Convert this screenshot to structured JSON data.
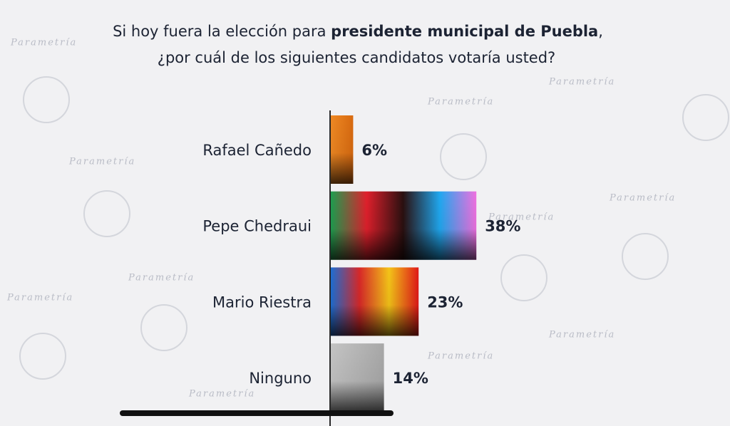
{
  "chart_data": {
    "type": "bar",
    "title": [
      "Si hoy fuera la elección para",
      "presidente municipal de Puebla",
      ",",
      "¿por cuál de los siguientes candidatos votaría usted?"
    ],
    "categories": [
      "Rafael Cañedo",
      "Pepe Chedraui",
      "Mario Riestra",
      "Ninguno"
    ],
    "values": [
      6,
      38,
      23,
      14
    ],
    "value_labels": [
      "6%",
      "38%",
      "23%",
      "14%"
    ],
    "colors": [
      [
        "#f08a24",
        "#d86a10"
      ],
      [
        "#1aa150",
        "#e0202c",
        "#2a1010",
        "#20a8f0",
        "#f070e0"
      ],
      [
        "#1870d8",
        "#d82828",
        "#f4c418",
        "#e01818"
      ],
      [
        "#c4c4c4",
        "#a8a8a8"
      ]
    ]
  }
}
